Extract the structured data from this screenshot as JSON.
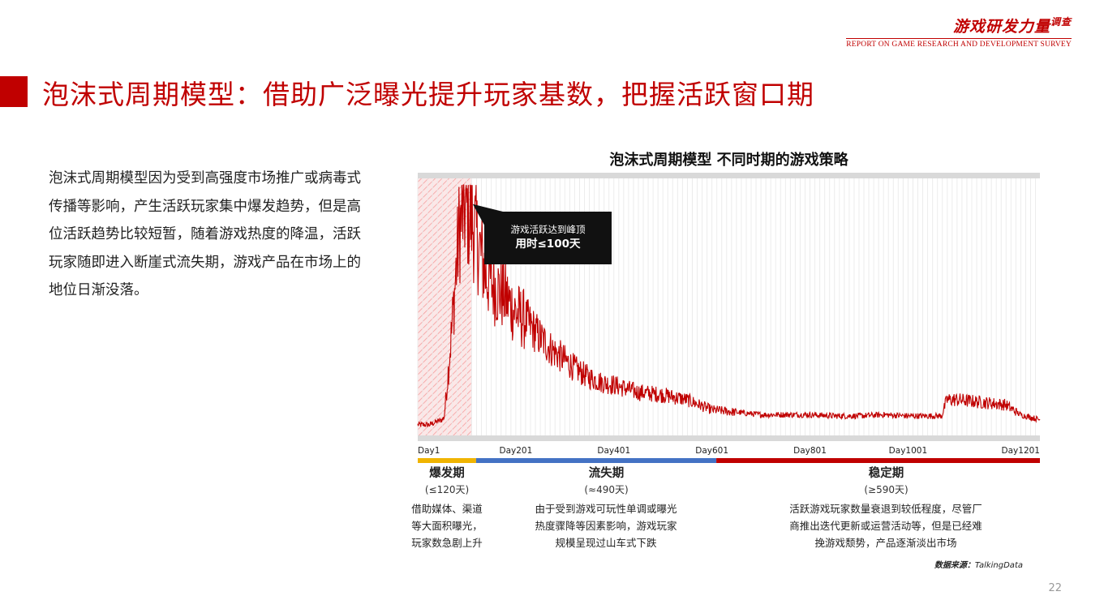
{
  "header": {
    "brand_title": "游戏研发力量",
    "brand_suffix": "调查",
    "brand_subtitle": "REPORT ON GAME RESEARCH AND DEVELOPMENT SURVEY"
  },
  "page_title": "泡沫式周期模型：借助广泛曝光提升玩家基数，把握活跃窗口期",
  "body_text": "泡沫式周期模型因为受到高强度市场推广或病毒式传播等影响，产生活跃玩家集中爆发趋势，但是高位活跃趋势比较短暂，随着游戏热度的降温，活跃玩家随即进入断崖式流失期，游戏产品在市场上的地位日渐没落。",
  "chart_data": {
    "type": "line",
    "title": "泡沫式周期模型 不同时期的游戏策略",
    "x_tick_labels": [
      "Day1",
      "Day201",
      "Day401",
      "Day601",
      "Day801",
      "Day1001",
      "Day1201"
    ],
    "xlim": [
      1,
      1270
    ],
    "grid": true,
    "y_axis_labels": false,
    "series": [
      {
        "color": "#c00000",
        "x": [
          1,
          25,
          50,
          55,
          70,
          85,
          95,
          110,
          125,
          140,
          160,
          180,
          200,
          225,
          250,
          275,
          300,
          325,
          350,
          375,
          400,
          450,
          500,
          550,
          600,
          650,
          700,
          750,
          800,
          850,
          900,
          950,
          1000,
          1070,
          1080,
          1100,
          1150,
          1200,
          1230,
          1270
        ],
        "y": [
          3,
          3,
          5,
          6,
          40,
          80,
          90,
          86,
          75,
          63,
          58,
          54,
          48,
          44,
          38,
          33,
          29,
          25,
          22,
          20,
          19,
          16,
          15,
          13,
          9,
          8,
          7,
          7,
          7,
          6.5,
          6.5,
          7,
          6.5,
          6.5,
          13,
          13,
          12,
          11,
          7,
          5
        ]
      }
    ],
    "highlight_region": {
      "from": 1,
      "to": 110
    },
    "annotation": {
      "line1": "游戏活跃达到峰顶",
      "line2": "用时≤100天",
      "target_x": 110,
      "target_y": 90
    },
    "phases": [
      {
        "name": "爆发期",
        "duration": "(≤120天)",
        "from": 1,
        "to": 120,
        "color": "#f0b400",
        "description": "借助媒体、渠道等大面积曝光，玩家数急剧上升"
      },
      {
        "name": "流失期",
        "duration": "(≈490天)",
        "from": 120,
        "to": 610,
        "color": "#4472c4",
        "description": "由于受到游戏可玩性单调或曝光热度骤降等因素影响，游戏玩家规模呈现过山车式下跌"
      },
      {
        "name": "稳定期",
        "duration": "(≥590天)",
        "from": 610,
        "to": 1270,
        "color": "#c00000",
        "description": "活跃游戏玩家数量衰退到较低程度，尽管厂商推出迭代更新或运营活动等，但是已经难挽游戏颓势，产品逐渐淡出市场"
      }
    ]
  },
  "source": {
    "label": "数据来源：",
    "value": "TalkingData"
  },
  "page_number": "22"
}
